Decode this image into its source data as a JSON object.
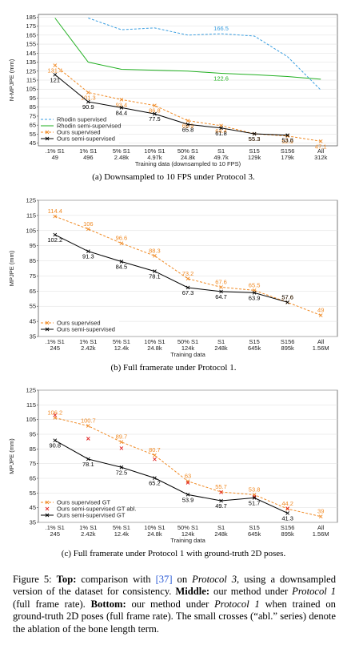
{
  "chart_data": [
    {
      "type": "line",
      "ylabel": "N-MPJPE (mm)",
      "xlabel": "Training data (downsampled to 10 FPS)",
      "caption": "(a) Downsampled to 10 FPS under Protocol 3.",
      "categories": [
        [
          ".1% S1",
          "49"
        ],
        [
          "1% S1",
          "496"
        ],
        [
          "5% S1",
          "2.48k"
        ],
        [
          "10% S1",
          "4.97k"
        ],
        [
          "50% S1",
          "24.8k"
        ],
        [
          "S1",
          "49.7k"
        ],
        [
          "S15",
          "129k"
        ],
        [
          "S156",
          "179k"
        ],
        [
          "All",
          "312k"
        ]
      ],
      "ylim": [
        42,
        188
      ],
      "yticks": [
        45,
        55,
        65,
        75,
        85,
        95,
        105,
        115,
        125,
        135,
        145,
        155,
        165,
        175,
        185
      ],
      "legend": "lower left",
      "series": [
        {
          "name": "Rhodin supervised",
          "color": "#3a9ee0",
          "dashed": true,
          "values": [
            null,
            184,
            171,
            173,
            165,
            166.5,
            164,
            141,
            104
          ],
          "value_labels": [
            null,
            null,
            null,
            null,
            null,
            "166.5",
            null,
            null,
            null
          ]
        },
        {
          "name": "Rhodin semi-supervised",
          "color": "#22b022",
          "values": [
            184,
            135,
            127,
            126,
            125,
            122.6,
            121,
            119,
            116
          ],
          "value_labels": [
            null,
            null,
            null,
            null,
            null,
            "122.6",
            null,
            null,
            null
          ]
        },
        {
          "name": "Ours supervised",
          "color": "#f08a24",
          "dashed": true,
          "marker": "x",
          "values": [
            131.4,
            101.3,
            93.4,
            86.8,
            69.9,
            64.4,
            55.3,
            52.9,
            47.1
          ],
          "value_labels": [
            "131.4",
            "101.3",
            "93.4",
            "86.8",
            "69.9",
            "64.4",
            "55.3",
            "52.9",
            "47.1"
          ]
        },
        {
          "name": "Ours semi-supervised",
          "color": "#000000",
          "marker": "x",
          "values": [
            121,
            90.9,
            84.4,
            77.5,
            65.8,
            61.8,
            55.3,
            53.8,
            null
          ],
          "value_labels": [
            "121",
            "90.9",
            "84.4",
            "77.5",
            "65.8",
            "61.8",
            "55.3",
            "53.8",
            null
          ]
        }
      ]
    },
    {
      "type": "line",
      "ylabel": "MPJPE (mm)",
      "xlabel": "Training data",
      "caption": "(b) Full framerate under Protocol 1.",
      "categories": [
        [
          ".1% S1",
          "245"
        ],
        [
          "1% S1",
          "2.42k"
        ],
        [
          "5% S1",
          "12.4k"
        ],
        [
          "10% S1",
          "24.8k"
        ],
        [
          "50% S1",
          "124k"
        ],
        [
          "S1",
          "248k"
        ],
        [
          "S15",
          "645k"
        ],
        [
          "S156",
          "895k"
        ],
        [
          "All",
          "1.56M"
        ]
      ],
      "ylim": [
        35,
        125
      ],
      "yticks": [
        35,
        45,
        55,
        65,
        75,
        85,
        95,
        105,
        115,
        125
      ],
      "legend": "lower left",
      "series": [
        {
          "name": "Ours supervised",
          "color": "#f08a24",
          "dashed": true,
          "marker": "x",
          "values": [
            114.4,
            106,
            96.6,
            88.3,
            73.2,
            67.6,
            65.5,
            57.6,
            49
          ],
          "value_labels": [
            "114.4",
            "106",
            "96.6",
            "88.3",
            "73.2",
            "67.6",
            "65.5",
            "57.6",
            "49"
          ]
        },
        {
          "name": "Ours semi-supervised",
          "color": "#000000",
          "marker": "x",
          "values": [
            102.2,
            91.3,
            84.5,
            78.1,
            67.3,
            64.7,
            63.9,
            57.6,
            null
          ],
          "value_labels": [
            "102.2",
            "91.3",
            "84.5",
            "78.1",
            "67.3",
            "64.7",
            "63.9",
            "57.6",
            null
          ]
        }
      ]
    },
    {
      "type": "line",
      "ylabel": "MPJPE (mm)",
      "xlabel": "Training data",
      "caption": "(c) Full framerate under Protocol 1 with ground-truth 2D poses.",
      "categories": [
        [
          ".1% S1",
          "245"
        ],
        [
          "1% S1",
          "2.42k"
        ],
        [
          "5% S1",
          "12.4k"
        ],
        [
          "10% S1",
          "24.8k"
        ],
        [
          "50% S1",
          "124k"
        ],
        [
          "S1",
          "248k"
        ],
        [
          "S15",
          "645k"
        ],
        [
          "S156",
          "895k"
        ],
        [
          "All",
          "1.56M"
        ]
      ],
      "ylim": [
        35,
        125
      ],
      "yticks": [
        35,
        45,
        55,
        65,
        75,
        85,
        95,
        105,
        115,
        125
      ],
      "legend": "lower left",
      "series": [
        {
          "name": "Ours supervised GT",
          "color": "#f08a24",
          "dashed": true,
          "marker": "x",
          "values": [
            106.2,
            100.7,
            89.7,
            80.7,
            63,
            55.7,
            53.8,
            44.2,
            39
          ],
          "value_labels": [
            "106.2",
            "100.7",
            "89.7",
            "80.7",
            "63",
            "55.7",
            "53.8",
            "44.2",
            "39"
          ]
        },
        {
          "name": "Ours semi-supervised GT abl.",
          "color": "#e02020",
          "noline": true,
          "marker": "x",
          "values": [
            108,
            92,
            85.5,
            78,
            62,
            55.5,
            52.5,
            44.5,
            null
          ]
        },
        {
          "name": "Ours semi-supervised GT",
          "color": "#000000",
          "marker": "x",
          "values": [
            90.8,
            78.1,
            72.5,
            65.2,
            53.9,
            49.7,
            51.7,
            41.3,
            null
          ],
          "value_labels": [
            "90.8",
            "78.1",
            "72.5",
            "65.2",
            "53.9",
            "49.7",
            "51.7",
            "41.3",
            null
          ]
        }
      ]
    }
  ],
  "figure_caption": [
    {
      "text": "Figure 5: "
    },
    {
      "text": "Top:",
      "style": "bold"
    },
    {
      "text": " comparison with "
    },
    {
      "text": "[37]",
      "style": "link"
    },
    {
      "text": " on "
    },
    {
      "text": "Protocol 3",
      "style": "italic"
    },
    {
      "text": ", using a downsampled version of the dataset for consistency. "
    },
    {
      "text": "Middle:",
      "style": "bold"
    },
    {
      "text": " our method under "
    },
    {
      "text": "Protocol 1",
      "style": "italic"
    },
    {
      "text": " (full frame rate). "
    },
    {
      "text": "Bottom:",
      "style": "bold"
    },
    {
      "text": " our method under "
    },
    {
      "text": "Protocol 1",
      "style": "italic"
    },
    {
      "text": " when trained on ground-truth 2D poses (full frame rate). The small crosses (“abl.” series) denote the ablation of the bone length term."
    }
  ]
}
